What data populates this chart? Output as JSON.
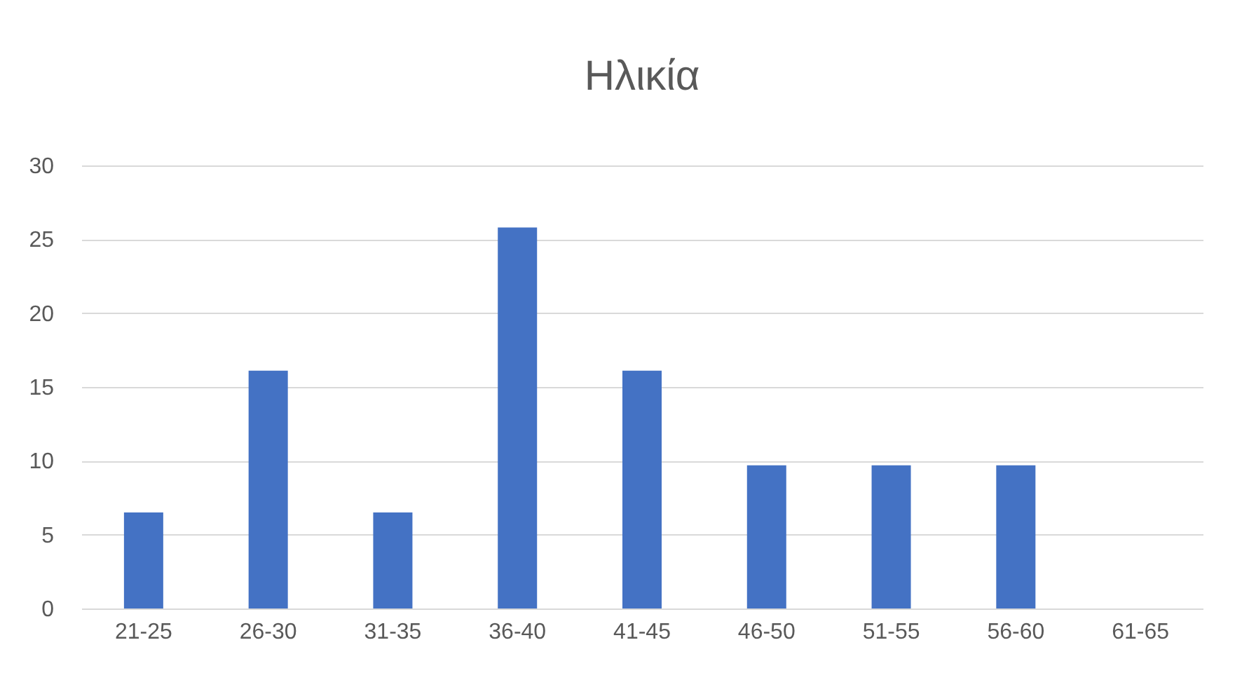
{
  "chart_data": {
    "type": "bar",
    "title": "Ηλικία",
    "categories": [
      "21-25",
      "26-30",
      "31-35",
      "36-40",
      "41-45",
      "46-50",
      "51-55",
      "56-60",
      "61-65"
    ],
    "values": [
      6.5,
      16.1,
      6.5,
      25.8,
      16.1,
      9.7,
      9.7,
      9.7,
      0
    ],
    "color": "#4472c4",
    "ylim": [
      0,
      30
    ],
    "yticks": [
      0,
      5,
      10,
      15,
      20,
      25,
      30
    ],
    "grid": "y"
  }
}
